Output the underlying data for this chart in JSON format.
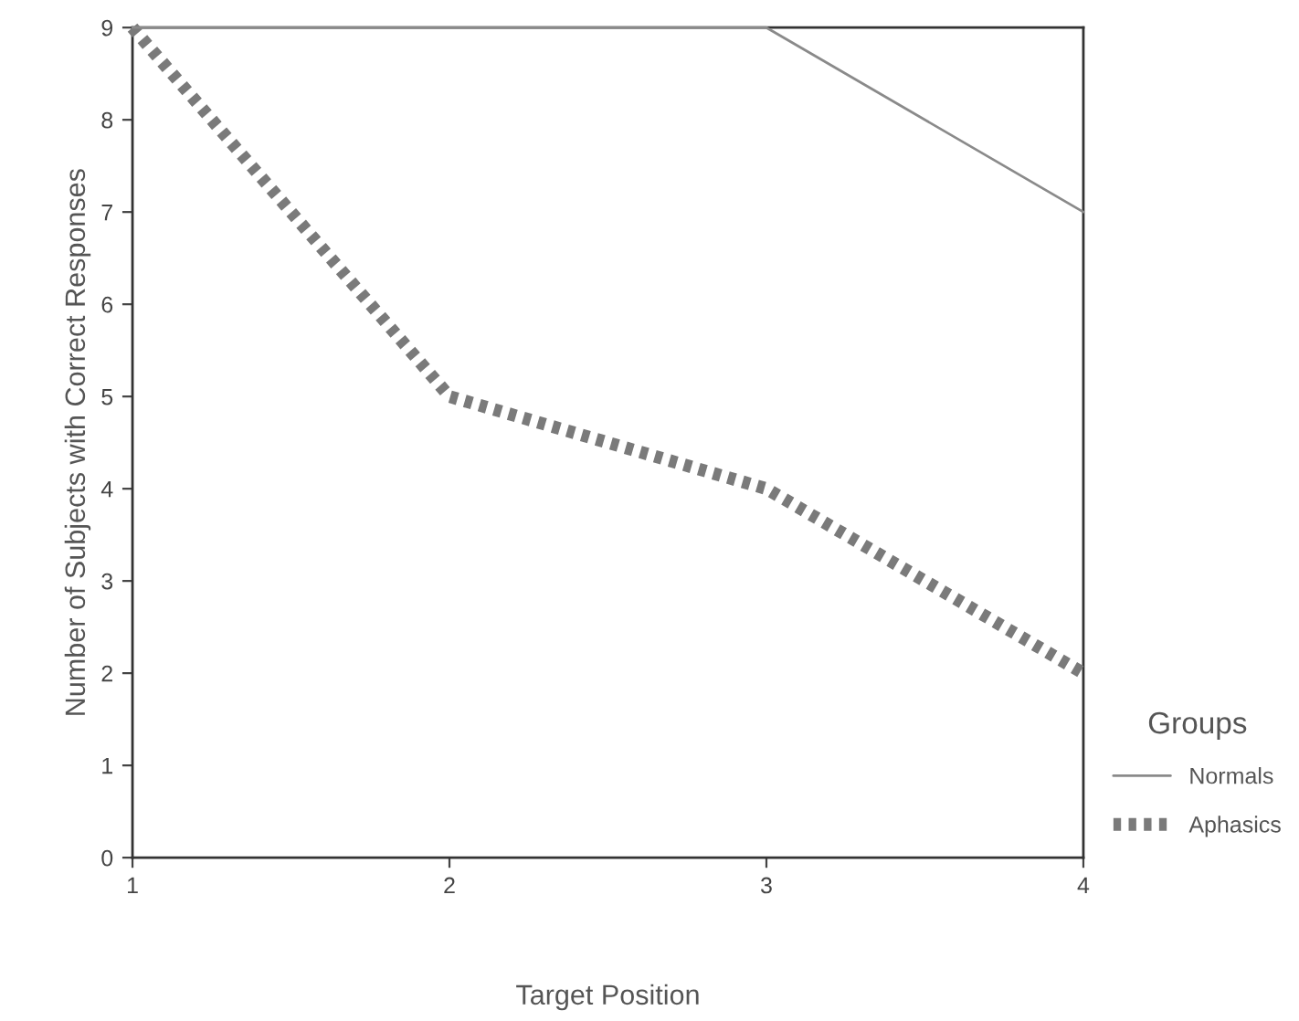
{
  "chart_data": {
    "type": "line",
    "xlabel": "Target Position",
    "ylabel": "Number of Subjects with Correct Responses",
    "legend_title": "Groups",
    "x": [
      1,
      2,
      3,
      4
    ],
    "series": [
      {
        "name": "Normals",
        "color": "#8a8a8a",
        "line_style": "solid",
        "values": [
          9,
          9,
          9,
          7
        ]
      },
      {
        "name": "Aphasics",
        "color": "#7a7a7a",
        "line_style": "dotted",
        "values": [
          9,
          5,
          4,
          2
        ]
      }
    ],
    "xlim": [
      1,
      4
    ],
    "xticks": [
      1,
      2,
      3,
      4
    ],
    "ylim": [
      0,
      9
    ],
    "yticks": [
      0,
      1,
      2,
      3,
      4,
      5,
      6,
      7,
      8,
      9
    ],
    "grid": false,
    "legend": "right",
    "marker": "none"
  }
}
